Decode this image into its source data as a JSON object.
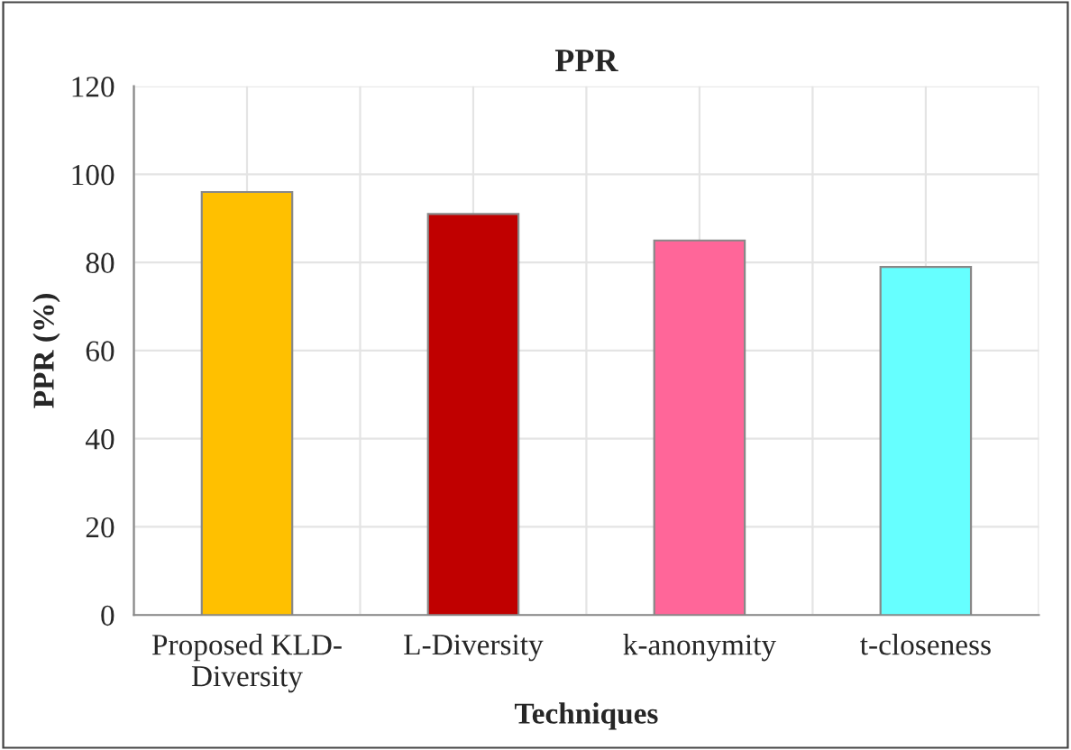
{
  "chart_data": {
    "type": "bar",
    "title": "PPR",
    "xlabel": "Techniques",
    "ylabel": "PPR (%)",
    "categories": [
      "Proposed KLD-Diversity",
      "L-Diversity",
      "k-anonymity",
      "t-closeness"
    ],
    "values": [
      96,
      91,
      85,
      79
    ],
    "colors": [
      "#ffc000",
      "#c00000",
      "#ff6699",
      "#66ffff"
    ],
    "ylim": [
      0,
      120
    ],
    "yticks": [
      0,
      20,
      40,
      60,
      80,
      100,
      120
    ],
    "grid": true
  }
}
